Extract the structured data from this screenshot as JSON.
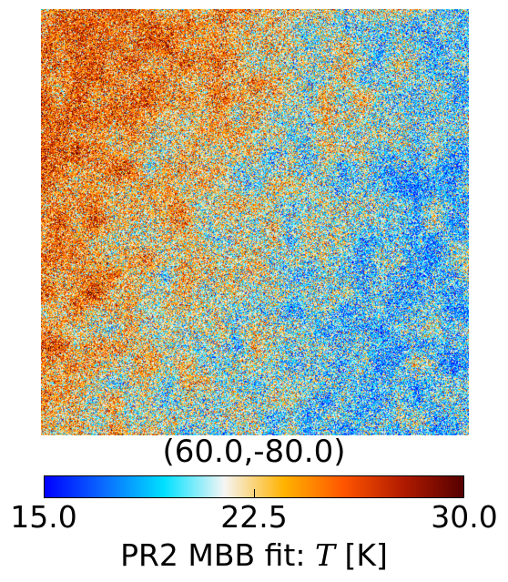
{
  "chart_data": {
    "type": "heatmap",
    "subtitle": "(60.0,-80.0)",
    "colorbar": {
      "min": 15.0,
      "max": 30.0,
      "ticks": [
        15.0,
        22.5,
        30.0
      ],
      "tick_labels": [
        "15.0",
        "22.5",
        "30.0"
      ],
      "label_prefix": "PR2 MBB fit: ",
      "label_symbol": "T",
      "label_unit": " [K]",
      "colors": [
        "#0000ff",
        "#0a6cff",
        "#00e1ff",
        "#f5f5f5",
        "#ffb300",
        "#ff5500",
        "#b01a00",
        "#550000"
      ]
    },
    "field": {
      "mean_low_region": 19.5,
      "mean_high_region": 25.0,
      "gradient": "warmer toward upper-left, cooler toward right"
    }
  }
}
